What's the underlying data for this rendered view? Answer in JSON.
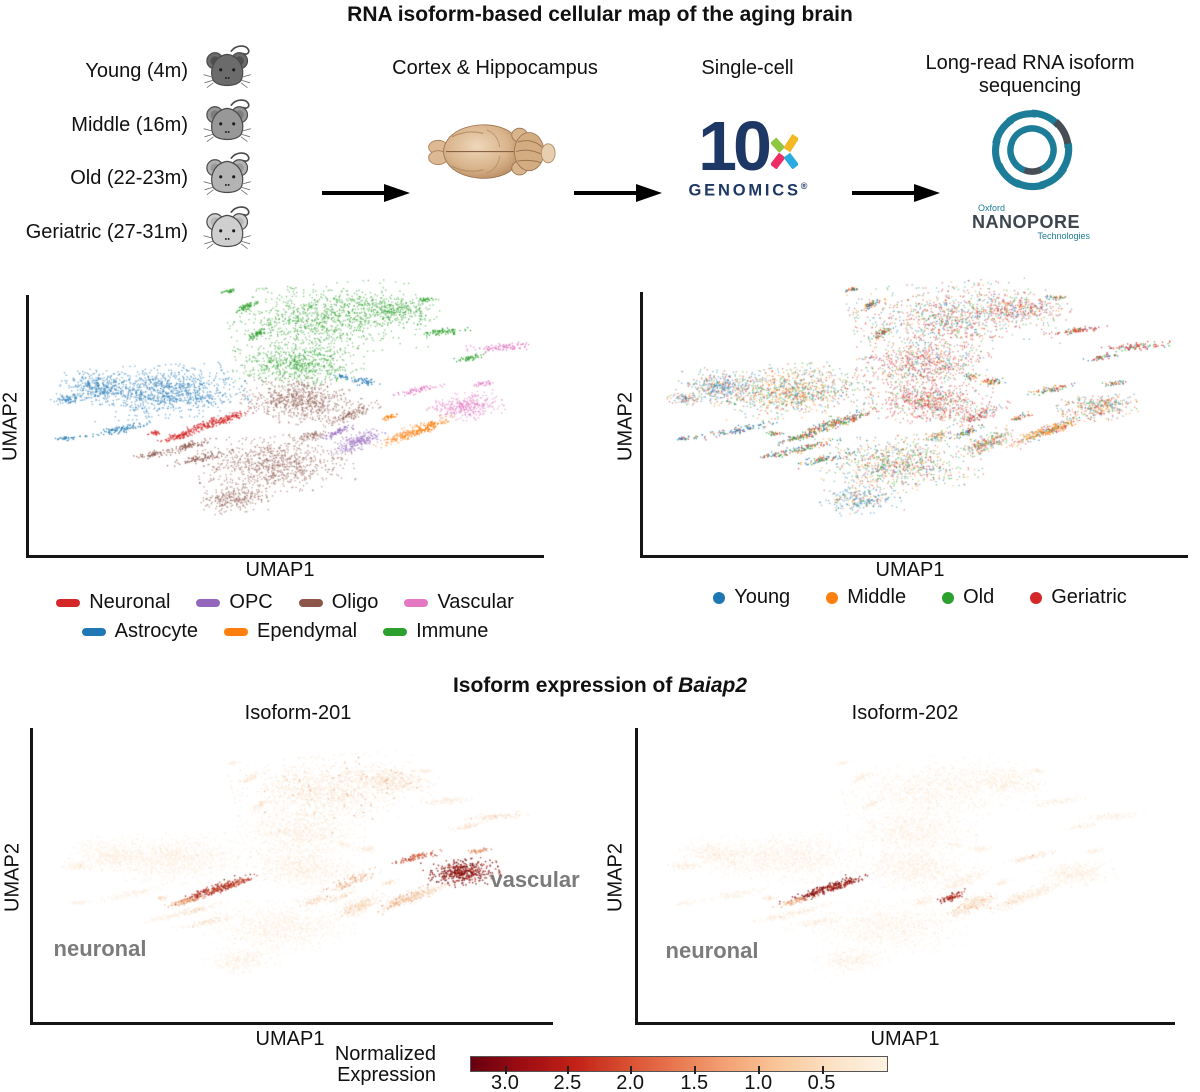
{
  "figure_title": "RNA isoform-based cellular map of the aging brain",
  "workflow": {
    "age_groups": [
      {
        "label": "Young (4m)",
        "mouse_color": "#6b6b6b",
        "ear_color": "#4f4f4f"
      },
      {
        "label": "Middle (16m)",
        "mouse_color": "#989898",
        "ear_color": "#7d7d7d"
      },
      {
        "label": "Old (22-23m)",
        "mouse_color": "#b3b3b3",
        "ear_color": "#9a9a9a"
      },
      {
        "label": "Geriatric (27-31m)",
        "mouse_color": "#cfcfcf",
        "ear_color": "#b8b8b8"
      }
    ],
    "step_cortex_label": "Cortex & Hippocampus",
    "step_singlecell_label": "Single-cell",
    "step_longread_line1": "Long-read RNA isoform",
    "step_longread_line2": "sequencing",
    "tenx_logo": {
      "number": "10",
      "wordmark": "GENOMICS",
      "registered": "®",
      "navy": "#1e3866",
      "x_colors": {
        "top_left": "#8dc63f",
        "top_right": "#f4b824",
        "bottom_left": "#ee2d67",
        "bottom_right": "#29abe2"
      }
    },
    "nanopore_logo": {
      "line_oxford": "Oxford",
      "line_nanopore": "NANOPORE",
      "line_technologies": "Technologies",
      "teal": "#1d7d99",
      "dark": "#474d54"
    }
  },
  "celltype_panel": {
    "xlabel": "UMAP1",
    "ylabel": "UMAP2",
    "legend_rows": [
      [
        {
          "label": "Neuronal",
          "color": "#d62728"
        },
        {
          "label": "OPC",
          "color": "#9467bd"
        },
        {
          "label": "Oligo",
          "color": "#8c564b"
        },
        {
          "label": "Vascular",
          "color": "#e377c2"
        }
      ],
      [
        {
          "label": "Astrocyte",
          "color": "#1f77b4"
        },
        {
          "label": "Ependymal",
          "color": "#ff7f0e"
        },
        {
          "label": "Immune",
          "color": "#2ca02c"
        }
      ]
    ]
  },
  "age_panel": {
    "xlabel": "UMAP1",
    "ylabel": "UMAP2",
    "legend": [
      {
        "label": "Young",
        "color": "#1f77b4"
      },
      {
        "label": "Middle",
        "color": "#ff7f0e"
      },
      {
        "label": "Old",
        "color": "#2ca02c"
      },
      {
        "label": "Geriatric",
        "color": "#d62728"
      }
    ]
  },
  "isoform_section": {
    "heading_prefix": "Isoform expression of ",
    "heading_gene": "Baiap2",
    "panels": [
      {
        "title": "Isoform-201",
        "xlabel": "UMAP1",
        "ylabel": "UMAP2",
        "annotations": [
          {
            "text": "vascular"
          },
          {
            "text": "neuronal"
          }
        ]
      },
      {
        "title": "Isoform-202",
        "xlabel": "UMAP1",
        "ylabel": "UMAP2",
        "annotations": [
          {
            "text": "neuronal"
          }
        ]
      }
    ],
    "colorbar": {
      "label_line1": "Normalized",
      "label_line2": "Expression",
      "ticks": [
        {
          "label": "3.0",
          "pos": 0.084
        },
        {
          "label": "2.5",
          "pos": 0.234
        },
        {
          "label": "2.0",
          "pos": 0.385
        },
        {
          "label": "1.5",
          "pos": 0.539
        },
        {
          "label": "1.0",
          "pos": 0.693
        },
        {
          "label": "0.5",
          "pos": 0.845
        }
      ],
      "gradient": [
        "#67000d",
        "#9e0d14",
        "#c22117",
        "#d94f31",
        "#e97a52",
        "#f4a577",
        "#f9c99d",
        "#fce3c8",
        "#fdf2e2"
      ]
    }
  },
  "chart_data": [
    {
      "id": "umap-celltypes",
      "type": "scatter",
      "title": "",
      "xlabel": "UMAP1",
      "ylabel": "UMAP2",
      "axes_note": "unlabeled UMAP embedding, L-shaped axes, no ticks",
      "legend_position": "below, two rows",
      "cluster_colors": {
        "Neuronal": "#d62728",
        "OPC": "#9467bd",
        "Oligo": "#8c564b",
        "Vascular": "#e377c2",
        "Astrocyte": "#1f77b4",
        "Ependymal": "#ff7f0e",
        "Immune": "#2ca02c"
      },
      "clusters": [
        {
          "cluster": "Immune",
          "cx": 0.565,
          "cy": 0.16,
          "rx": 0.155,
          "ry": 0.105,
          "rot": -8,
          "n": 950,
          "mix": "top",
          "h201": 0.28,
          "h202": 0.1
        },
        {
          "cluster": "Immune",
          "cx": 0.515,
          "cy": 0.32,
          "rx": 0.105,
          "ry": 0.075,
          "rot": 0,
          "n": 650,
          "mix": "ger",
          "h201": 0.16,
          "h202": 0.08
        },
        {
          "cluster": "Immune",
          "cx": 0.695,
          "cy": 0.125,
          "rx": 0.075,
          "ry": 0.048,
          "rot": 15,
          "n": 300,
          "mix": "top",
          "h201": 0.3,
          "h202": 0.1
        },
        {
          "cluster": "Immune",
          "cx": 0.415,
          "cy": 0.115,
          "rx": 0.028,
          "ry": 0.01,
          "rot": -45,
          "n": 60,
          "mix": "even",
          "h201": 0.15,
          "h202": 0.08
        },
        {
          "cluster": "Immune",
          "cx": 0.435,
          "cy": 0.215,
          "rx": 0.03,
          "ry": 0.009,
          "rot": -50,
          "n": 55,
          "mix": "even",
          "h201": 0.15,
          "h202": 0.08
        },
        {
          "cluster": "Immune",
          "cx": 0.38,
          "cy": 0.06,
          "rx": 0.014,
          "ry": 0.006,
          "rot": -30,
          "n": 28,
          "mix": "even",
          "h201": 0.1,
          "h202": 0.08
        },
        {
          "cluster": "Immune",
          "cx": 0.8,
          "cy": 0.205,
          "rx": 0.046,
          "ry": 0.011,
          "rot": -12,
          "n": 75,
          "mix": "ger",
          "h201": 0.2,
          "h202": 0.08
        },
        {
          "cluster": "Immune",
          "cx": 0.845,
          "cy": 0.3,
          "rx": 0.03,
          "ry": 0.009,
          "rot": -20,
          "n": 45,
          "mix": "even",
          "h201": 0.32,
          "h202": 0.08
        },
        {
          "cluster": "Immune",
          "cx": 0.76,
          "cy": 0.09,
          "rx": 0.016,
          "ry": 0.008,
          "rot": 0,
          "n": 28,
          "mix": "even",
          "h201": 0.12,
          "h202": 0.08
        },
        {
          "cluster": "Astrocyte",
          "cx": 0.265,
          "cy": 0.42,
          "rx": 0.125,
          "ry": 0.08,
          "rot": -5,
          "n": 950,
          "mix": "left",
          "h201": 0.1,
          "h202": 0.09
        },
        {
          "cluster": "Astrocyte",
          "cx": 0.135,
          "cy": 0.405,
          "rx": 0.065,
          "ry": 0.05,
          "rot": 10,
          "n": 350,
          "mix": "young",
          "h201": 0.1,
          "h202": 0.09
        },
        {
          "cluster": "Astrocyte",
          "cx": 0.072,
          "cy": 0.448,
          "rx": 0.028,
          "ry": 0.018,
          "rot": 0,
          "n": 85,
          "mix": "young",
          "h201": 0.08,
          "h202": 0.08
        },
        {
          "cluster": "Astrocyte",
          "cx": 0.175,
          "cy": 0.555,
          "rx": 0.062,
          "ry": 0.012,
          "rot": -20,
          "n": 95,
          "mix": "young",
          "h201": 0.1,
          "h202": 0.08
        },
        {
          "cluster": "Astrocyte",
          "cx": 0.072,
          "cy": 0.588,
          "rx": 0.02,
          "ry": 0.007,
          "rot": -10,
          "n": 30,
          "mix": "young",
          "h201": 0.08,
          "h202": 0.08
        },
        {
          "cluster": "Astrocyte",
          "cx": 0.645,
          "cy": 0.385,
          "rx": 0.022,
          "ry": 0.012,
          "rot": 0,
          "n": 48,
          "mix": "even",
          "h201": 0.15,
          "h202": 0.09
        },
        {
          "cluster": "Astrocyte",
          "cx": 0.6,
          "cy": 0.368,
          "rx": 0.015,
          "ry": 0.008,
          "rot": 20,
          "n": 26,
          "mix": "even",
          "h201": 0.12,
          "h202": 0.08
        },
        {
          "cluster": "Neuronal",
          "cx": 0.33,
          "cy": 0.545,
          "rx": 0.068,
          "ry": 0.013,
          "rot": -38,
          "n": 130,
          "mix": "even",
          "h201": 0.85,
          "h202": 0.95
        },
        {
          "cluster": "Neuronal",
          "cx": 0.378,
          "cy": 0.52,
          "rx": 0.05,
          "ry": 0.01,
          "rot": -38,
          "n": 95,
          "mix": "bottom",
          "h201": 0.8,
          "h202": 0.9
        },
        {
          "cluster": "Neuronal",
          "cx": 0.285,
          "cy": 0.582,
          "rx": 0.042,
          "ry": 0.01,
          "rot": -28,
          "n": 75,
          "mix": "even",
          "h201": 0.55,
          "h202": 0.5
        },
        {
          "cluster": "Neuronal",
          "cx": 0.238,
          "cy": 0.57,
          "rx": 0.013,
          "ry": 0.008,
          "rot": 0,
          "n": 26,
          "mix": "even",
          "h201": 0.3,
          "h202": 0.25
        },
        {
          "cluster": "Oligo",
          "cx": 0.52,
          "cy": 0.455,
          "rx": 0.095,
          "ry": 0.07,
          "rot": 10,
          "n": 700,
          "mix": "ger",
          "h201": 0.12,
          "h202": 0.1
        },
        {
          "cluster": "Oligo",
          "cx": 0.47,
          "cy": 0.68,
          "rx": 0.125,
          "ry": 0.085,
          "rot": -5,
          "n": 800,
          "mix": "bottom",
          "h201": 0.1,
          "h202": 0.08
        },
        {
          "cluster": "Oligo",
          "cx": 0.395,
          "cy": 0.805,
          "rx": 0.062,
          "ry": 0.042,
          "rot": -10,
          "n": 260,
          "mix": "young",
          "h201": 0.08,
          "h202": 0.08
        },
        {
          "cluster": "Oligo",
          "cx": 0.298,
          "cy": 0.62,
          "rx": 0.055,
          "ry": 0.012,
          "rot": -25,
          "n": 85,
          "mix": "bottom",
          "h201": 0.3,
          "h202": 0.2
        },
        {
          "cluster": "Oligo",
          "cx": 0.33,
          "cy": 0.66,
          "rx": 0.06,
          "ry": 0.012,
          "rot": -22,
          "n": 85,
          "mix": "bottom",
          "h201": 0.25,
          "h202": 0.15
        },
        {
          "cluster": "Oligo",
          "cx": 0.24,
          "cy": 0.645,
          "rx": 0.035,
          "ry": 0.01,
          "rot": -18,
          "n": 50,
          "mix": "even",
          "h201": 0.1,
          "h202": 0.08
        },
        {
          "cluster": "Oligo",
          "cx": 0.615,
          "cy": 0.505,
          "rx": 0.06,
          "ry": 0.018,
          "rot": -40,
          "n": 130,
          "mix": "ger",
          "h201": 0.45,
          "h202": 0.15
        },
        {
          "cluster": "Oligo",
          "cx": 0.54,
          "cy": 0.58,
          "rx": 0.032,
          "ry": 0.015,
          "rot": -28,
          "n": 75,
          "mix": "even",
          "h201": 0.35,
          "h202": 0.1
        },
        {
          "cluster": "OPC",
          "cx": 0.63,
          "cy": 0.6,
          "rx": 0.055,
          "ry": 0.022,
          "rot": -42,
          "n": 230,
          "mix": "even",
          "h201": 0.3,
          "h202": 0.35
        },
        {
          "cluster": "OPC",
          "cx": 0.593,
          "cy": 0.565,
          "rx": 0.032,
          "ry": 0.01,
          "rot": -42,
          "n": 60,
          "mix": "even",
          "h201": 0.25,
          "h202": 0.85
        },
        {
          "cluster": "Ependymal",
          "cx": 0.72,
          "cy": 0.575,
          "rx": 0.058,
          "ry": 0.016,
          "rot": -42,
          "n": 160,
          "mix": "mid",
          "h201": 0.45,
          "h202": 0.25
        },
        {
          "cluster": "Ependymal",
          "cx": 0.765,
          "cy": 0.548,
          "rx": 0.05,
          "ry": 0.013,
          "rot": -42,
          "n": 115,
          "mix": "mid",
          "h201": 0.3,
          "h202": 0.12
        },
        {
          "cluster": "Ependymal",
          "cx": 0.69,
          "cy": 0.512,
          "rx": 0.02,
          "ry": 0.008,
          "rot": -35,
          "n": 35,
          "mix": "even",
          "h201": 0.2,
          "h202": 0.1
        },
        {
          "cluster": "Vascular",
          "cx": 0.835,
          "cy": 0.475,
          "rx": 0.062,
          "ry": 0.042,
          "rot": -10,
          "n": 340,
          "mix": "even",
          "h201": 0.95,
          "h202": 0.1
        },
        {
          "cluster": "Vascular",
          "cx": 0.905,
          "cy": 0.262,
          "rx": 0.055,
          "ry": 0.012,
          "rot": -8,
          "n": 95,
          "mix": "ger",
          "h201": 0.3,
          "h202": 0.1
        },
        {
          "cluster": "Vascular",
          "cx": 0.745,
          "cy": 0.415,
          "rx": 0.045,
          "ry": 0.01,
          "rot": -25,
          "n": 65,
          "mix": "even",
          "h201": 0.75,
          "h202": 0.3
        },
        {
          "cluster": "Vascular",
          "cx": 0.87,
          "cy": 0.392,
          "rx": 0.02,
          "ry": 0.008,
          "rot": -20,
          "n": 32,
          "mix": "even",
          "h201": 0.6,
          "h202": 0.1
        }
      ]
    },
    {
      "id": "umap-age",
      "type": "scatter",
      "xlabel": "UMAP1",
      "ylabel": "UMAP2",
      "note": "same embedding as umap-celltypes; points colored by age group per cluster 'mix' preset",
      "group_colors": {
        "Young": "#1f77b4",
        "Middle": "#ff7f0e",
        "Old": "#2ca02c",
        "Geriatric": "#d62728"
      },
      "mix_presets": {
        "top": [
          0.18,
          0.15,
          0.22,
          0.45
        ],
        "even": [
          0.25,
          0.25,
          0.25,
          0.25
        ],
        "left": [
          0.22,
          0.34,
          0.2,
          0.24
        ],
        "young": [
          0.55,
          0.15,
          0.12,
          0.18
        ],
        "mid": [
          0.12,
          0.66,
          0.1,
          0.12
        ],
        "bottom": [
          0.3,
          0.2,
          0.22,
          0.28
        ],
        "ger": [
          0.12,
          0.1,
          0.18,
          0.6
        ]
      }
    },
    {
      "id": "umap-isoform-201",
      "type": "scatter",
      "title": "Isoform-201",
      "xlabel": "UMAP1",
      "ylabel": "UMAP2",
      "value_label": "Normalized Expression",
      "value_range_shown": [
        0.5,
        3.0
      ],
      "colormap": "dark red (high) to pale cream (low)",
      "note": "heat per cluster given by h201 in umap-celltypes.clusters",
      "high_regions": [
        "vascular",
        "neuronal"
      ]
    },
    {
      "id": "umap-isoform-202",
      "type": "scatter",
      "title": "Isoform-202",
      "xlabel": "UMAP1",
      "ylabel": "UMAP2",
      "value_label": "Normalized Expression",
      "value_range_shown": [
        0.5,
        3.0
      ],
      "colormap": "dark red (high) to pale cream (low)",
      "note": "heat per cluster given by h202 in umap-celltypes.clusters",
      "high_regions": [
        "neuronal"
      ]
    }
  ]
}
